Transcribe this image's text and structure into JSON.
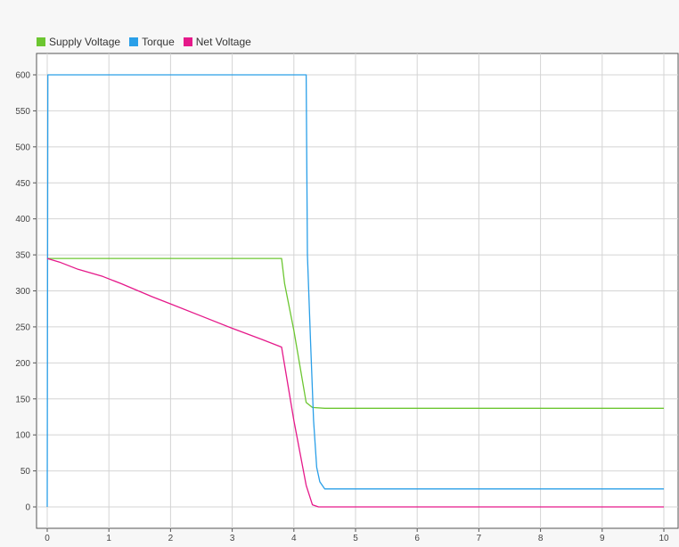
{
  "chart_data": {
    "type": "line",
    "title": "",
    "xlabel": "",
    "ylabel": "",
    "xlim": [
      0,
      10
    ],
    "ylim": [
      -15,
      630
    ],
    "x_ticks": [
      0,
      1,
      2,
      3,
      4,
      5,
      6,
      7,
      8,
      9,
      10
    ],
    "y_ticks": [
      0,
      50,
      100,
      150,
      200,
      250,
      300,
      350,
      400,
      450,
      500,
      550,
      600
    ],
    "grid": true,
    "legend_position": "top-left",
    "series": [
      {
        "name": "Supply Voltage",
        "color": "#6cc631",
        "points": [
          [
            0,
            345
          ],
          [
            3.8,
            345
          ],
          [
            3.85,
            310
          ],
          [
            4.0,
            245
          ],
          [
            4.2,
            145
          ],
          [
            4.3,
            138
          ],
          [
            4.5,
            137
          ],
          [
            10,
            137
          ]
        ]
      },
      {
        "name": "Torque",
        "color": "#2a9fe8",
        "points": [
          [
            0,
            0
          ],
          [
            0.01,
            600
          ],
          [
            4.2,
            600
          ],
          [
            4.22,
            350
          ],
          [
            4.27,
            230
          ],
          [
            4.32,
            120
          ],
          [
            4.37,
            55
          ],
          [
            4.42,
            35
          ],
          [
            4.5,
            25
          ],
          [
            10,
            25
          ]
        ]
      },
      {
        "name": "Net Voltage",
        "color": "#e5198a",
        "points": [
          [
            0,
            345
          ],
          [
            0.2,
            340
          ],
          [
            0.5,
            330
          ],
          [
            0.9,
            320
          ],
          [
            1.2,
            310
          ],
          [
            1.7,
            292
          ],
          [
            2.0,
            282
          ],
          [
            2.5,
            265
          ],
          [
            3.0,
            248
          ],
          [
            3.5,
            232
          ],
          [
            3.8,
            222
          ],
          [
            4.0,
            120
          ],
          [
            4.2,
            30
          ],
          [
            4.3,
            3
          ],
          [
            4.4,
            0
          ],
          [
            10,
            0
          ]
        ]
      }
    ]
  }
}
